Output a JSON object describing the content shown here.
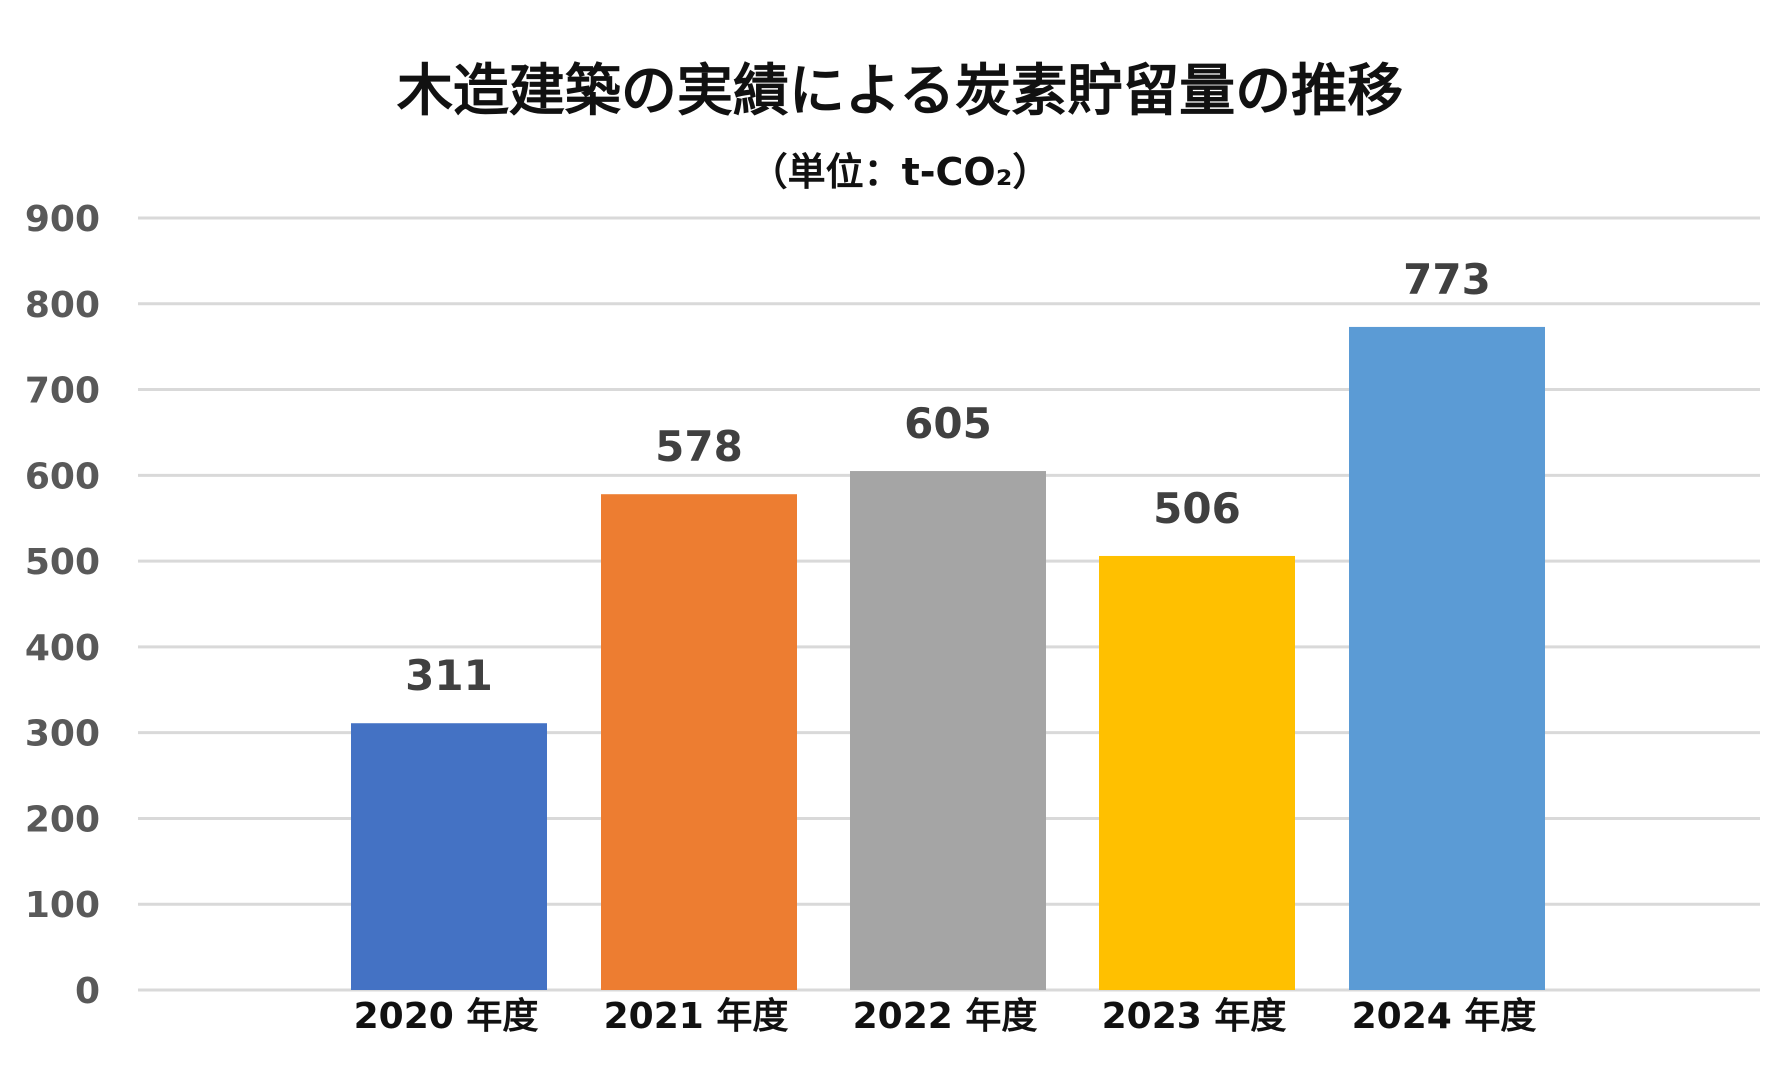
{
  "chart_data": {
    "type": "bar",
    "title": "木造建築の実績による炭素貯留量の推移",
    "subtitle": "（単位：t-CO₂）",
    "categories": [
      "2020 年度",
      "2021 年度",
      "2022 年度",
      "2023 年度",
      "2024 年度"
    ],
    "values": [
      311,
      578,
      605,
      506,
      773
    ],
    "data_labels": [
      "311",
      "578",
      "605",
      "506",
      "773"
    ],
    "bar_colors": [
      "#4472c4",
      "#ed7d31",
      "#a5a5a5",
      "#ffc000",
      "#5b9bd5"
    ],
    "ylim": [
      0,
      900
    ],
    "yticks": [
      0,
      100,
      200,
      300,
      400,
      500,
      600,
      700,
      800,
      900
    ],
    "ytick_labels": [
      "0",
      "100",
      "200",
      "300",
      "400",
      "500",
      "600",
      "700",
      "800",
      "900"
    ],
    "xlabel": "",
    "ylabel": "",
    "grid": true,
    "legend": "none"
  }
}
